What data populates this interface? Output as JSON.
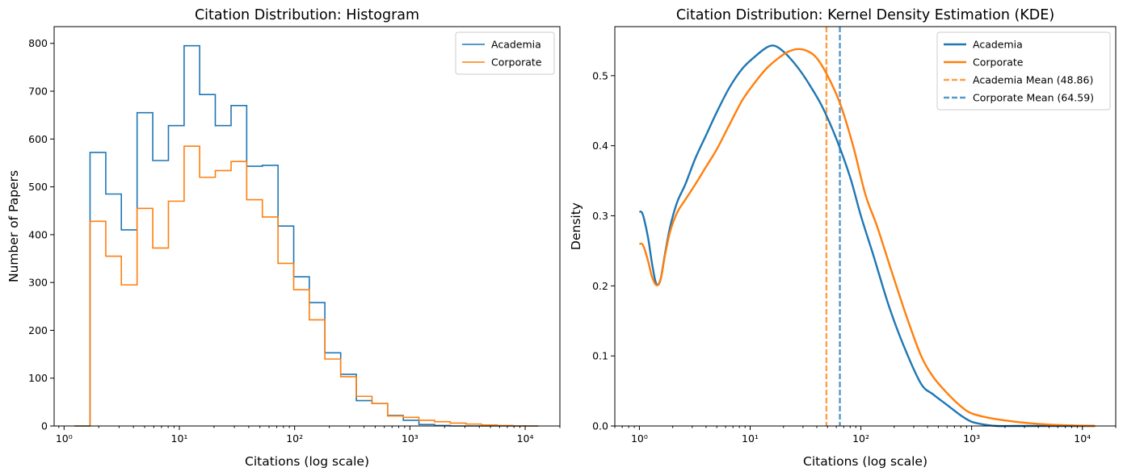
{
  "chart_data": [
    {
      "type": "histogram",
      "title": "Citation Distribution: Histogram",
      "xlabel": "Citations (log scale)",
      "ylabel": "Number of Papers",
      "xscale": "log",
      "xlim": [
        0.82,
        20000
      ],
      "ylim": [
        0,
        835
      ],
      "grid": false,
      "legend_position": "top-right",
      "x_ticks": [
        1,
        10,
        100,
        1000,
        10000
      ],
      "x_tick_labels": [
        "10⁰",
        "10¹",
        "10²",
        "10³",
        "10⁴"
      ],
      "y_ticks": [
        0,
        100,
        200,
        300,
        400,
        500,
        600,
        700,
        800
      ],
      "y_tick_labels": [
        "0",
        "100",
        "200",
        "300",
        "400",
        "500",
        "600",
        "700",
        "800"
      ],
      "bin_edges": [
        1.23,
        1.68,
        2.3,
        3.14,
        4.3,
        5.88,
        8.04,
        11.0,
        15.0,
        20.5,
        28.1,
        38.4,
        52.5,
        71.8,
        98.2,
        134,
        183,
        251,
        343,
        469,
        641,
        876,
        1198,
        1638,
        2239,
        3062,
        4186,
        5723,
        7825,
        10700,
        13000
      ],
      "series": [
        {
          "name": "Academia",
          "color": "#1f77b4",
          "values": [
            0,
            572,
            485,
            410,
            655,
            555,
            628,
            795,
            693,
            628,
            670,
            543,
            545,
            418,
            312,
            258,
            153,
            108,
            53,
            47,
            22,
            12,
            3,
            1,
            0,
            0,
            0,
            0,
            0,
            0
          ]
        },
        {
          "name": "Corporate",
          "color": "#ff7f0e",
          "values": [
            0,
            428,
            355,
            295,
            455,
            372,
            470,
            585,
            520,
            534,
            553,
            473,
            437,
            340,
            285,
            222,
            140,
            103,
            62,
            47,
            21,
            18,
            12,
            9,
            6,
            4,
            2,
            1,
            0,
            0
          ]
        }
      ]
    },
    {
      "type": "line",
      "title": "Citation Distribution: Kernel Density Estimation (KDE)",
      "xlabel": "Citations (log scale)",
      "ylabel": "Density",
      "xscale": "log",
      "xlim": [
        0.6,
        20000
      ],
      "ylim": [
        0,
        0.57
      ],
      "grid": false,
      "legend_position": "top-right",
      "x_ticks": [
        1,
        10,
        100,
        1000,
        10000
      ],
      "x_tick_labels": [
        "10⁰",
        "10¹",
        "10²",
        "10³",
        "10⁴"
      ],
      "y_ticks": [
        0.0,
        0.1,
        0.2,
        0.3,
        0.4,
        0.5
      ],
      "y_tick_labels": [
        "0.0",
        "0.1",
        "0.2",
        "0.3",
        "0.4",
        "0.5"
      ],
      "series": [
        {
          "name": "Academia",
          "color": "#1f77b4",
          "x": [
            1.0,
            1.05,
            1.1,
            1.2,
            1.3,
            1.42,
            1.55,
            1.7,
            1.9,
            2.2,
            2.6,
            3.2,
            4.0,
            5.0,
            6.5,
            8.5,
            11,
            14,
            16,
            18,
            22,
            28,
            35,
            45,
            60,
            80,
            100,
            130,
            180,
            250,
            350,
            450,
            600,
            800,
            1000,
            1300,
            1700,
            2500,
            4000,
            7000,
            13000
          ],
          "y": [
            0.306,
            0.305,
            0.296,
            0.268,
            0.232,
            0.203,
            0.209,
            0.245,
            0.285,
            0.32,
            0.345,
            0.382,
            0.415,
            0.448,
            0.483,
            0.51,
            0.527,
            0.54,
            0.543,
            0.54,
            0.528,
            0.508,
            0.485,
            0.455,
            0.41,
            0.355,
            0.3,
            0.243,
            0.17,
            0.11,
            0.06,
            0.045,
            0.03,
            0.015,
            0.006,
            0.002,
            0.0,
            0.0,
            0.0,
            0.0,
            0.0
          ]
        },
        {
          "name": "Corporate",
          "color": "#ff7f0e",
          "x": [
            1.0,
            1.05,
            1.1,
            1.2,
            1.3,
            1.42,
            1.55,
            1.7,
            1.9,
            2.2,
            2.6,
            3.2,
            4.0,
            5.0,
            6.5,
            8.5,
            11,
            14,
            18,
            22,
            27,
            33,
            40,
            50,
            65,
            85,
            110,
            140,
            190,
            260,
            350,
            450,
            600,
            800,
            1000,
            1500,
            2500,
            4000,
            7000,
            13000
          ],
          "y": [
            0.26,
            0.26,
            0.255,
            0.235,
            0.213,
            0.201,
            0.208,
            0.243,
            0.278,
            0.305,
            0.323,
            0.345,
            0.37,
            0.395,
            0.43,
            0.465,
            0.49,
            0.51,
            0.525,
            0.534,
            0.538,
            0.535,
            0.525,
            0.5,
            0.46,
            0.4,
            0.33,
            0.285,
            0.22,
            0.155,
            0.1,
            0.07,
            0.047,
            0.028,
            0.018,
            0.011,
            0.006,
            0.003,
            0.001,
            0.0
          ]
        },
        {
          "name": "Academia Mean (48.86)",
          "color": "#ff7f0e",
          "dashed": true,
          "vline": 48.86
        },
        {
          "name": "Corporate Mean (64.59)",
          "color": "#1f77b4",
          "dashed": true,
          "vline": 64.59
        }
      ]
    }
  ]
}
